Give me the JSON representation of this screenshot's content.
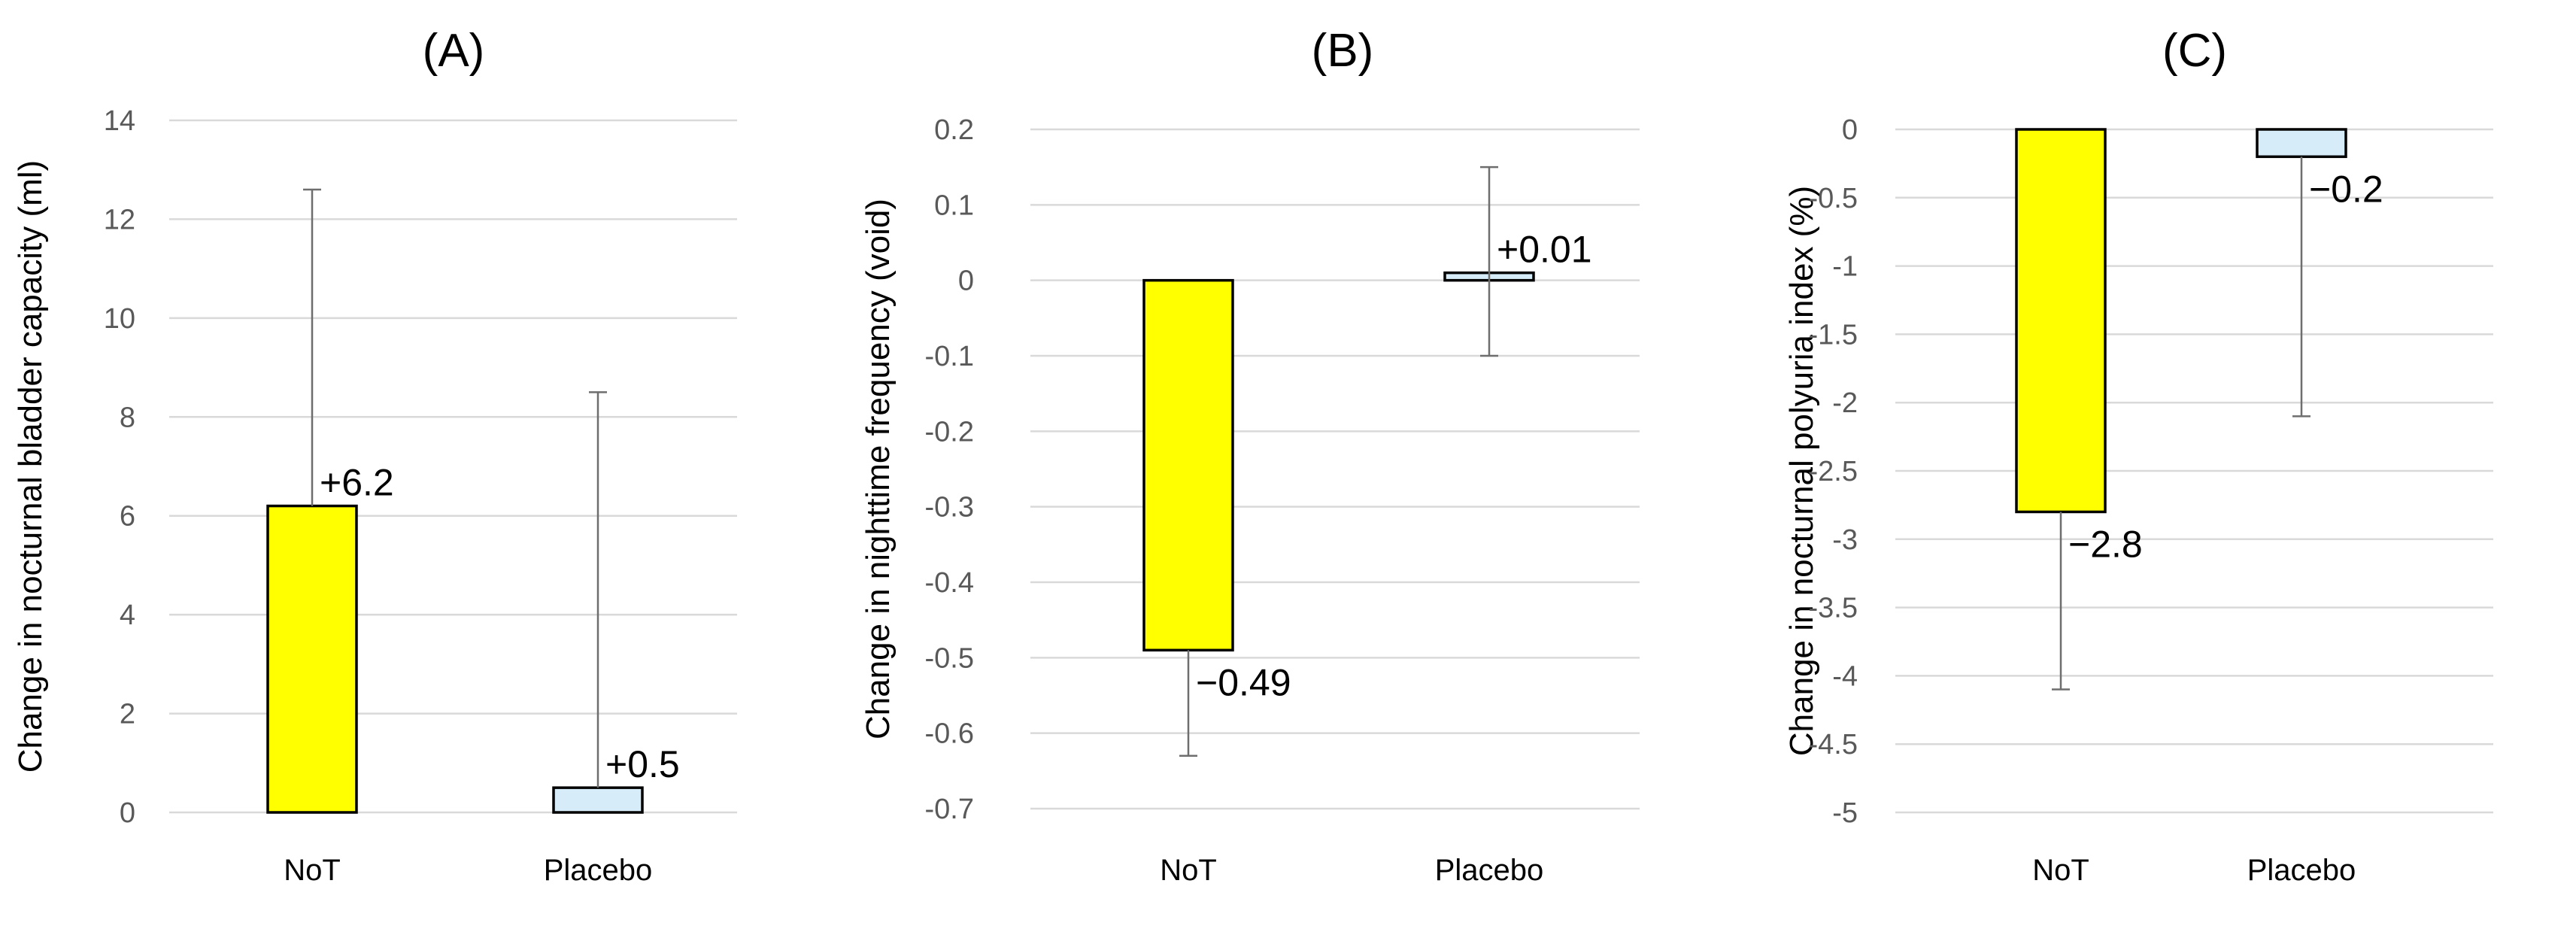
{
  "chart_data": [
    {
      "type": "bar",
      "title": "(A)",
      "ylabel": "Change in nocturnal bladder capacity (ml)",
      "xlabel": "",
      "categories": [
        "NoT",
        "Placebo"
      ],
      "values": [
        6.2,
        0.5
      ],
      "value_labels": [
        "+6.2",
        "+0.5"
      ],
      "error_upper": [
        12.6,
        8.5
      ],
      "error_lower": [
        null,
        null
      ],
      "ylim": [
        0,
        14
      ],
      "yticks": [
        0,
        2,
        4,
        6,
        8,
        10,
        12,
        14
      ],
      "ytick_labels": [
        "0",
        "2",
        "4",
        "6",
        "8",
        "10",
        "12",
        "14"
      ],
      "grid": true,
      "bar_colors": [
        "#ffff00",
        "#d6ecf8"
      ]
    },
    {
      "type": "bar",
      "title": "(B)",
      "ylabel": "Change in nighttime frequency (void)",
      "xlabel": "",
      "categories": [
        "NoT",
        "Placebo"
      ],
      "values": [
        -0.49,
        0.01
      ],
      "value_labels": [
        "−0.49",
        "+0.01"
      ],
      "error_upper": [
        null,
        0.15
      ],
      "error_lower": [
        -0.63,
        -0.1
      ],
      "ylim": [
        -0.7,
        0.2
      ],
      "yticks": [
        0.2,
        0.1,
        0,
        -0.1,
        -0.2,
        -0.3,
        -0.4,
        -0.5,
        -0.6,
        -0.7
      ],
      "ytick_labels": [
        "0.2",
        "0.1",
        "0",
        "-0.1",
        "-0.2",
        "-0.3",
        "-0.4",
        "-0.5",
        "-0.6",
        "-0.7"
      ],
      "grid": true,
      "bar_colors": [
        "#ffff00",
        "#d6ecf8"
      ]
    },
    {
      "type": "bar",
      "title": "(C)",
      "ylabel": "Change in nocturnal polyuria index (%)",
      "xlabel": "",
      "categories": [
        "NoT",
        "Placebo"
      ],
      "values": [
        -2.8,
        -0.2
      ],
      "value_labels": [
        "−2.8",
        "−0.2"
      ],
      "error_upper": [
        null,
        null
      ],
      "error_lower": [
        -4.1,
        -2.1
      ],
      "ylim": [
        -5,
        0
      ],
      "yticks": [
        0,
        -0.5,
        -1,
        -1.5,
        -2,
        -2.5,
        -3,
        -3.5,
        -4,
        -4.5,
        -5
      ],
      "ytick_labels": [
        "0",
        "-0.5",
        "-1",
        "-1.5",
        "-2",
        "-2.5",
        "-3",
        "-3.5",
        "-4",
        "-4.5",
        "-5"
      ],
      "grid": true,
      "bar_colors": [
        "#ffff00",
        "#d6ecf8"
      ]
    }
  ]
}
